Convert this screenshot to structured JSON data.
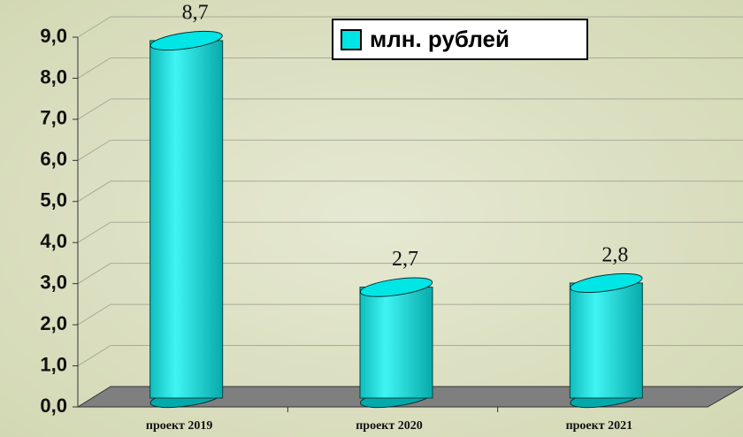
{
  "chart_data": {
    "type": "bar",
    "categories": [
      "проект 2019",
      "проект 2020",
      "проект 2021"
    ],
    "series": [
      {
        "name": "млн. рублей",
        "color": "#00e5e5",
        "values": [
          8.7,
          2.7,
          2.8
        ],
        "value_labels": [
          "8,7",
          "2,7",
          "2,8"
        ]
      }
    ],
    "ylim": [
      0,
      9
    ],
    "yticks": [
      {
        "value": 0,
        "label": "0,0"
      },
      {
        "value": 1,
        "label": "1,0"
      },
      {
        "value": 2,
        "label": "2,0"
      },
      {
        "value": 3,
        "label": "3,0"
      },
      {
        "value": 4,
        "label": "4,0"
      },
      {
        "value": 5,
        "label": "5,0"
      },
      {
        "value": 6,
        "label": "6,0"
      },
      {
        "value": 7,
        "label": "7,0"
      },
      {
        "value": 8,
        "label": "8,0"
      },
      {
        "value": 9,
        "label": "9,0"
      }
    ],
    "grid": true,
    "legend": "top-right"
  }
}
